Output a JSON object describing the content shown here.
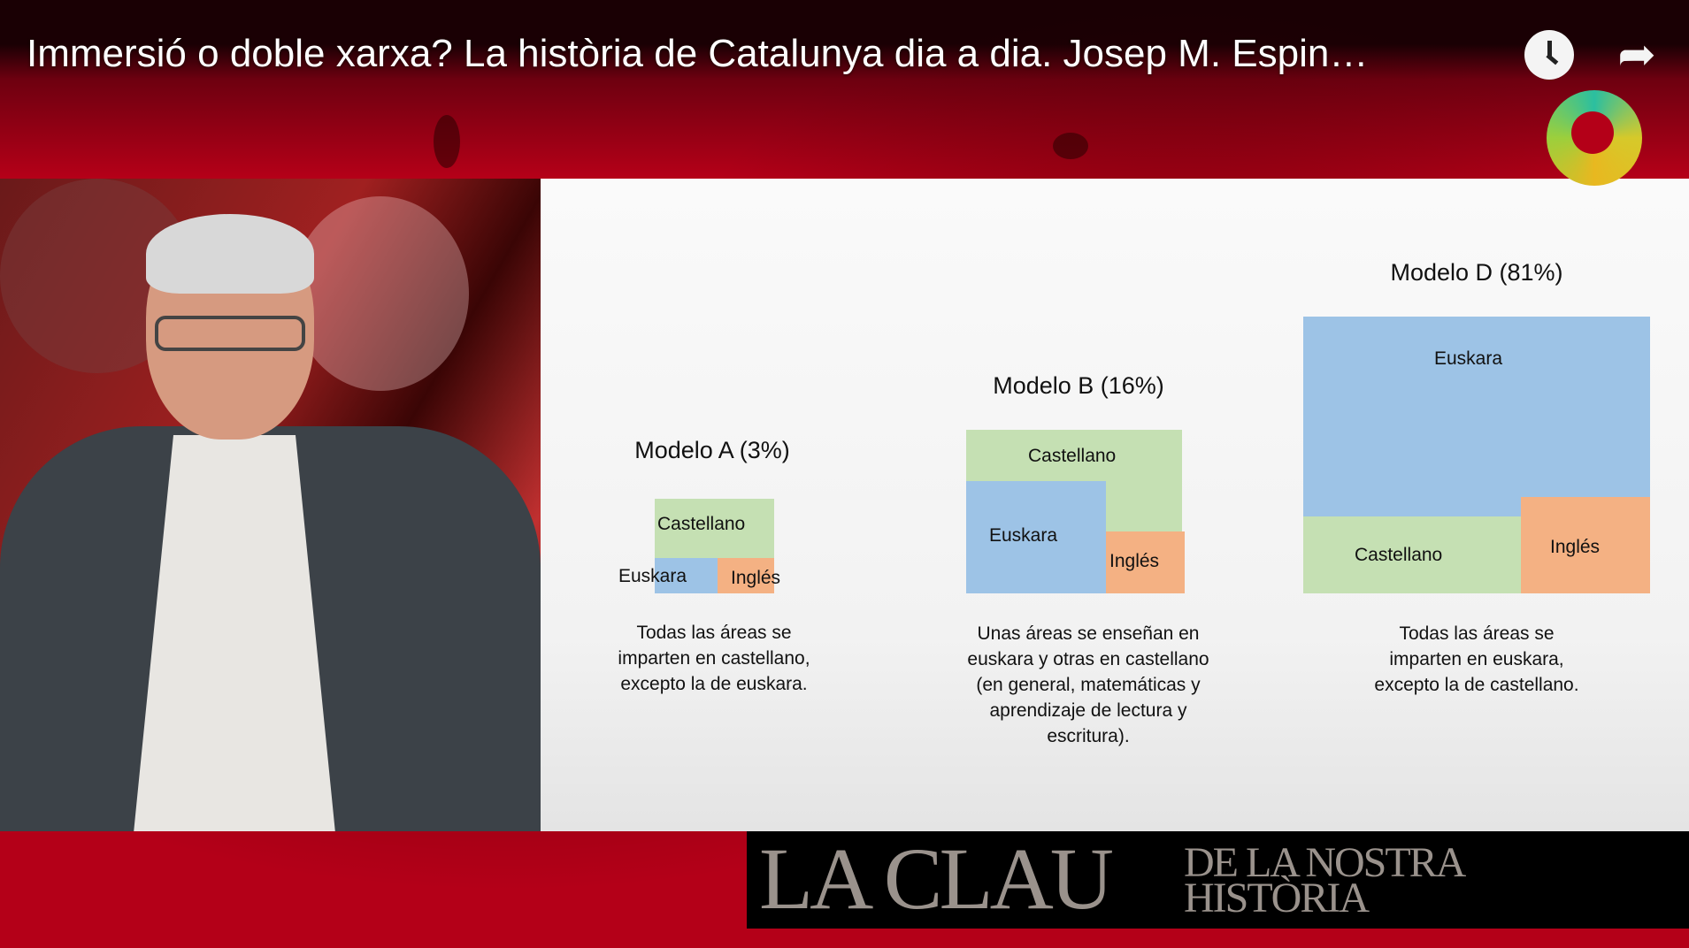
{
  "video": {
    "title": "Immersió o doble xarxa? La història de Catalunya dia a dia. Josep M. Espin…",
    "icons": {
      "watch_later": "clock-icon",
      "share": "share-arrow-icon",
      "channel_logo": "channel-logo"
    }
  },
  "slide": {
    "models": [
      {
        "title": "Modelo A (3%)",
        "areas": {
          "castellano": "Castellano",
          "euskara": "Euskara",
          "ingles": "Inglés"
        },
        "description": [
          "Todas las áreas se",
          "imparten en castellano,",
          "excepto la de euskara."
        ]
      },
      {
        "title": "Modelo B (16%)",
        "areas": {
          "castellano": "Castellano",
          "euskara": "Euskara",
          "ingles": "Inglés"
        },
        "description": [
          "Unas áreas se enseñan en",
          "euskara y otras en castellano",
          "(en general, matemáticas y",
          "aprendizaje de lectura y",
          "escritura)."
        ]
      },
      {
        "title": "Modelo D (81%)",
        "areas": {
          "castellano": "Castellano",
          "euskara": "Euskara",
          "ingles": "Inglés"
        },
        "description": [
          "Todas las áreas se",
          "imparten en euskara,",
          "excepto la de castellano."
        ]
      }
    ],
    "colors": {
      "castellano": "#c5e0b3",
      "euskara": "#9dc3e6",
      "ingles": "#f4b183"
    }
  },
  "program": {
    "name_big": "LA CLAU",
    "name_line1": "DE LA NOSTRA",
    "name_line2": "HISTÒRIA"
  }
}
